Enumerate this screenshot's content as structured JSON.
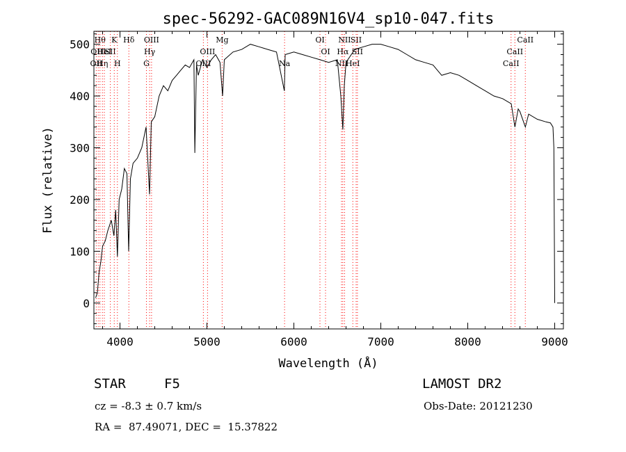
{
  "chart_data": {
    "type": "line",
    "title": "spec-56292-GAC089N16V4_sp10-047.fits",
    "xlabel": "Wavelength (Å)",
    "ylabel": "Flux (relative)",
    "xlim": [
      3700,
      9100
    ],
    "ylim": [
      -50,
      525
    ],
    "x_ticks": [
      4000,
      5000,
      6000,
      7000,
      8000,
      9000
    ],
    "y_ticks": [
      0,
      100,
      200,
      300,
      400,
      500
    ],
    "grid": false,
    "line_color": "#000000",
    "marker_line_color": "#ff0000",
    "series": [
      {
        "x": [
          3720,
          3740,
          3760,
          3780,
          3800,
          3830,
          3860,
          3900,
          3930,
          3950,
          3970,
          3990,
          4020,
          4050,
          4080,
          4100,
          4120,
          4150,
          4200,
          4250,
          4300,
          4340,
          4360,
          4400,
          4450,
          4500,
          4550,
          4600,
          4650,
          4700,
          4750,
          4800,
          4850,
          4861,
          4880,
          4900,
          4950,
          5000,
          5050,
          5100,
          5150,
          5180,
          5200,
          5300,
          5400,
          5500,
          5600,
          5700,
          5800,
          5890,
          5900,
          6000,
          6100,
          6200,
          6300,
          6400,
          6500,
          6540,
          6563,
          6580,
          6600,
          6700,
          6800,
          6900,
          7000,
          7100,
          7200,
          7300,
          7400,
          7500,
          7600,
          7700,
          7800,
          7900,
          8000,
          8100,
          8200,
          8300,
          8400,
          8500,
          8542,
          8580,
          8600,
          8662,
          8700,
          8800,
          8900,
          8950,
          8980,
          8990,
          9000
        ],
        "values": [
          10,
          20,
          60,
          80,
          110,
          120,
          140,
          160,
          130,
          180,
          90,
          200,
          220,
          260,
          250,
          100,
          240,
          270,
          280,
          300,
          340,
          210,
          350,
          360,
          400,
          420,
          410,
          430,
          440,
          450,
          460,
          455,
          470,
          290,
          460,
          440,
          470,
          455,
          470,
          480,
          465,
          400,
          470,
          485,
          490,
          500,
          495,
          490,
          485,
          410,
          480,
          485,
          480,
          475,
          470,
          465,
          470,
          400,
          335,
          420,
          465,
          490,
          495,
          500,
          500,
          495,
          490,
          480,
          470,
          465,
          460,
          440,
          445,
          440,
          430,
          420,
          410,
          400,
          395,
          385,
          340,
          375,
          370,
          340,
          365,
          355,
          350,
          348,
          340,
          300,
          0
        ]
      }
    ],
    "line_markers": [
      {
        "wavelength": 3727,
        "label": "OII",
        "row": 2
      },
      {
        "wavelength": 3750,
        "label": "OIII",
        "row": 1
      },
      {
        "wavelength": 3770,
        "label": "Hθ",
        "row": 0
      },
      {
        "wavelength": 3798,
        "label": "Hη",
        "row": 2
      },
      {
        "wavelength": 3820,
        "label": "HeI",
        "row": 1
      },
      {
        "wavelength": 3889,
        "label": "SII",
        "row": 1
      },
      {
        "wavelength": 3934,
        "label": "K",
        "row": 0
      },
      {
        "wavelength": 3970,
        "label": "H",
        "row": 2
      },
      {
        "wavelength": 4102,
        "label": "Hδ",
        "row": 0
      },
      {
        "wavelength": 4304,
        "label": "G",
        "row": 2
      },
      {
        "wavelength": 4341,
        "label": "Hγ",
        "row": 1
      },
      {
        "wavelength": 4363,
        "label": "OIII",
        "row": 0
      },
      {
        "wavelength": 4959,
        "label": "OIII",
        "row": 2
      },
      {
        "wavelength": 5007,
        "label": "OIII",
        "row": 1
      },
      {
        "wavelength": 5175,
        "label": "Mg",
        "row": 0
      },
      {
        "wavelength": 5893,
        "label": "Na",
        "row": 2
      },
      {
        "wavelength": 6300,
        "label": "OI",
        "row": 0
      },
      {
        "wavelength": 6364,
        "label": "OI",
        "row": 1
      },
      {
        "wavelength": 6548,
        "label": "NII",
        "row": 2
      },
      {
        "wavelength": 6563,
        "label": "Hα",
        "row": 1
      },
      {
        "wavelength": 6583,
        "label": "NII",
        "row": 0
      },
      {
        "wavelength": 6678,
        "label": "HeI",
        "row": 2
      },
      {
        "wavelength": 6716,
        "label": "SII",
        "row": 0
      },
      {
        "wavelength": 6731,
        "label": "SII",
        "row": 1
      },
      {
        "wavelength": 8498,
        "label": "CaII",
        "row": 2
      },
      {
        "wavelength": 8542,
        "label": "CaII",
        "row": 1
      },
      {
        "wavelength": 8662,
        "label": "CaII",
        "row": 0
      }
    ]
  },
  "info": {
    "class_type": "STAR",
    "subclass": "F5",
    "survey": "LAMOST DR2",
    "velocity": "cz = -8.3 ± 0.7 km/s",
    "obs_date": "Obs-Date: 20121230",
    "coords": "RA =  87.49071, DEC =  15.37822"
  }
}
